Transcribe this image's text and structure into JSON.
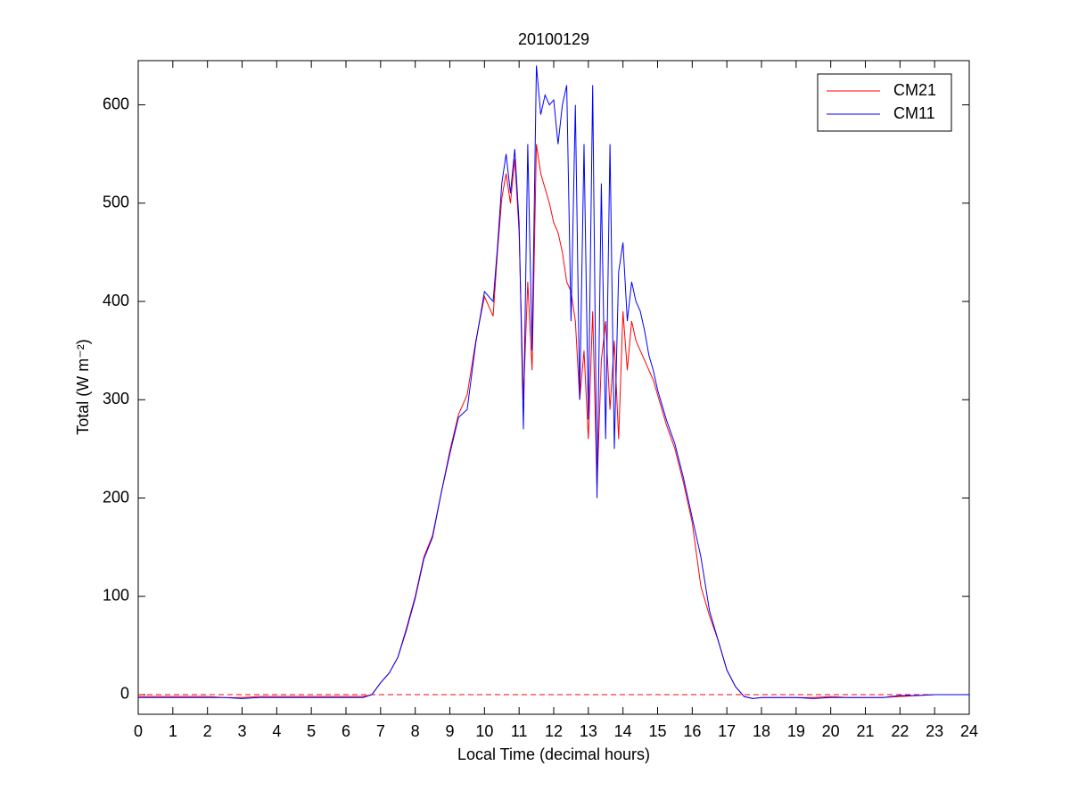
{
  "chart_data": {
    "type": "line",
    "title": "20100129",
    "x_label": "Local Time (decimal hours)",
    "y_label": "Total (W m⁻²)",
    "x": [
      0,
      0.5,
      1,
      1.5,
      2,
      2.5,
      3,
      3.5,
      4,
      4.5,
      5,
      5.5,
      6,
      6.5,
      6.75,
      7,
      7.25,
      7.5,
      7.75,
      8,
      8.25,
      8.5,
      8.75,
      9,
      9.25,
      9.5,
      9.75,
      10,
      10.25,
      10.375,
      10.5,
      10.625,
      10.75,
      10.875,
      11,
      11.125,
      11.25,
      11.375,
      11.5,
      11.625,
      11.75,
      11.875,
      12,
      12.125,
      12.25,
      12.375,
      12.5,
      12.625,
      12.75,
      12.875,
      13,
      13.125,
      13.25,
      13.375,
      13.5,
      13.625,
      13.75,
      13.875,
      14,
      14.125,
      14.25,
      14.375,
      14.5,
      14.625,
      14.75,
      14.875,
      15,
      15.25,
      15.5,
      15.75,
      16,
      16.25,
      16.5,
      16.75,
      17,
      17.25,
      17.5,
      17.75,
      18,
      18.5,
      19,
      19.5,
      20,
      20.5,
      21,
      21.5,
      22,
      22.5,
      23,
      23.5,
      24
    ],
    "series": [
      {
        "name": "CM21",
        "color": "#ff0000",
        "values": [
          -2,
          -2,
          -2,
          -2,
          -2,
          -3,
          -3,
          -2,
          -2,
          -2,
          -2,
          -2,
          -2,
          -2,
          0,
          12,
          22,
          38,
          68,
          100,
          140,
          162,
          205,
          248,
          285,
          305,
          360,
          405,
          385,
          450,
          505,
          530,
          500,
          545,
          470,
          300,
          420,
          330,
          560,
          530,
          515,
          500,
          480,
          470,
          450,
          420,
          410,
          380,
          300,
          350,
          260,
          390,
          210,
          340,
          380,
          290,
          360,
          260,
          390,
          330,
          380,
          360,
          350,
          340,
          330,
          320,
          305,
          275,
          250,
          215,
          175,
          110,
          80,
          55,
          25,
          8,
          -2,
          -4,
          -3,
          -3,
          -3,
          -3,
          -2,
          -3,
          -3,
          -3,
          -2,
          -1,
          0,
          0,
          0
        ]
      },
      {
        "name": "CM11",
        "color": "#0000ff",
        "values": [
          -3,
          -3,
          -3,
          -3,
          -3,
          -3,
          -4,
          -3,
          -3,
          -3,
          -3,
          -3,
          -3,
          -3,
          0,
          12,
          22,
          38,
          66,
          98,
          138,
          160,
          205,
          245,
          282,
          290,
          358,
          410,
          400,
          455,
          520,
          550,
          510,
          555,
          480,
          270,
          560,
          350,
          640,
          590,
          610,
          600,
          605,
          560,
          600,
          620,
          380,
          600,
          300,
          560,
          280,
          620,
          200,
          520,
          260,
          560,
          250,
          430,
          460,
          380,
          420,
          400,
          390,
          370,
          345,
          330,
          310,
          280,
          255,
          220,
          180,
          140,
          85,
          55,
          25,
          8,
          -2,
          -4,
          -3,
          -3,
          -3,
          -4,
          -3,
          -3,
          -3,
          -3,
          -1,
          -1,
          0,
          0,
          0
        ]
      }
    ],
    "reference_line": {
      "y": 0,
      "color": "#ff0000",
      "style": "dashed"
    },
    "xlim": [
      0,
      24
    ],
    "xticks": [
      0,
      1,
      2,
      3,
      4,
      5,
      6,
      7,
      8,
      9,
      10,
      11,
      12,
      13,
      14,
      15,
      16,
      17,
      18,
      19,
      20,
      21,
      22,
      23,
      24
    ],
    "ylim": [
      -20,
      645
    ],
    "yticks": [
      0,
      100,
      200,
      300,
      400,
      500,
      600
    ],
    "legend": "top-right",
    "grid": false
  }
}
